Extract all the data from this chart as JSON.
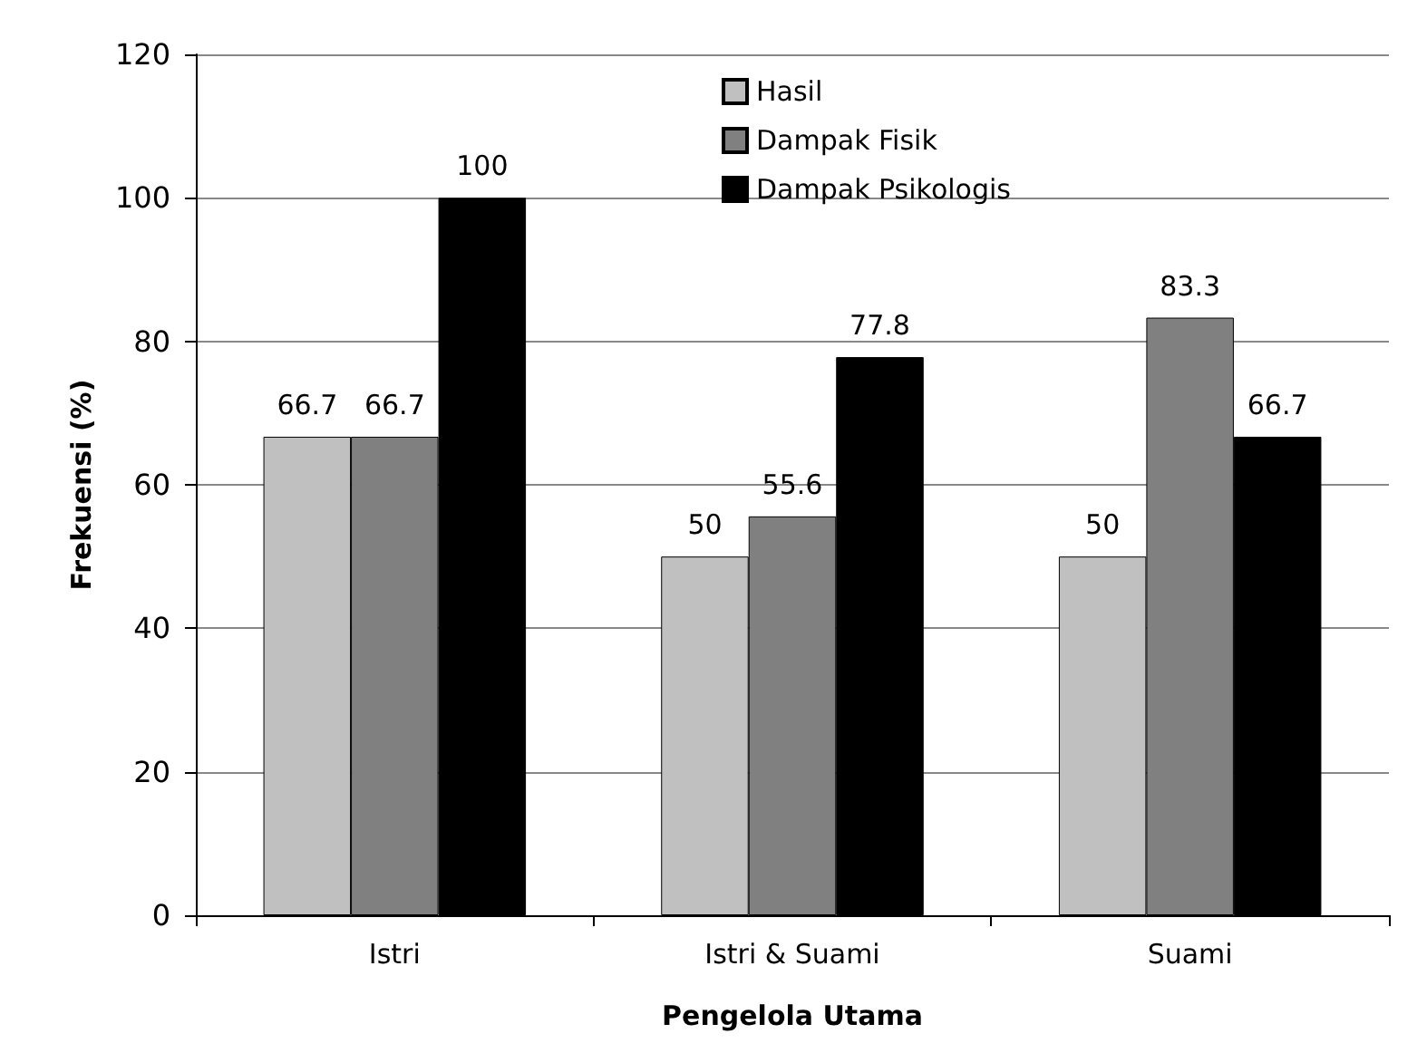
{
  "chart_data": {
    "type": "bar",
    "xlabel": "Pengelola Utama",
    "ylabel": "Frekuensi (%)",
    "categories": [
      "Istri",
      "Istri & Suami",
      "Suami"
    ],
    "series": [
      {
        "name": "Hasil",
        "color": "#c0c0c0",
        "values": [
          66.7,
          50,
          50
        ]
      },
      {
        "name": "Dampak Fisik",
        "color": "#808080",
        "values": [
          66.7,
          55.6,
          83.3
        ]
      },
      {
        "name": "Dampak Psikologis",
        "color": "#000000",
        "values": [
          100,
          77.8,
          66.7
        ]
      }
    ],
    "ylim": [
      0,
      120
    ],
    "yticks": [
      0,
      20,
      40,
      60,
      80,
      100,
      120
    ],
    "grid": "y",
    "legend": "top",
    "data_labels": true
  }
}
